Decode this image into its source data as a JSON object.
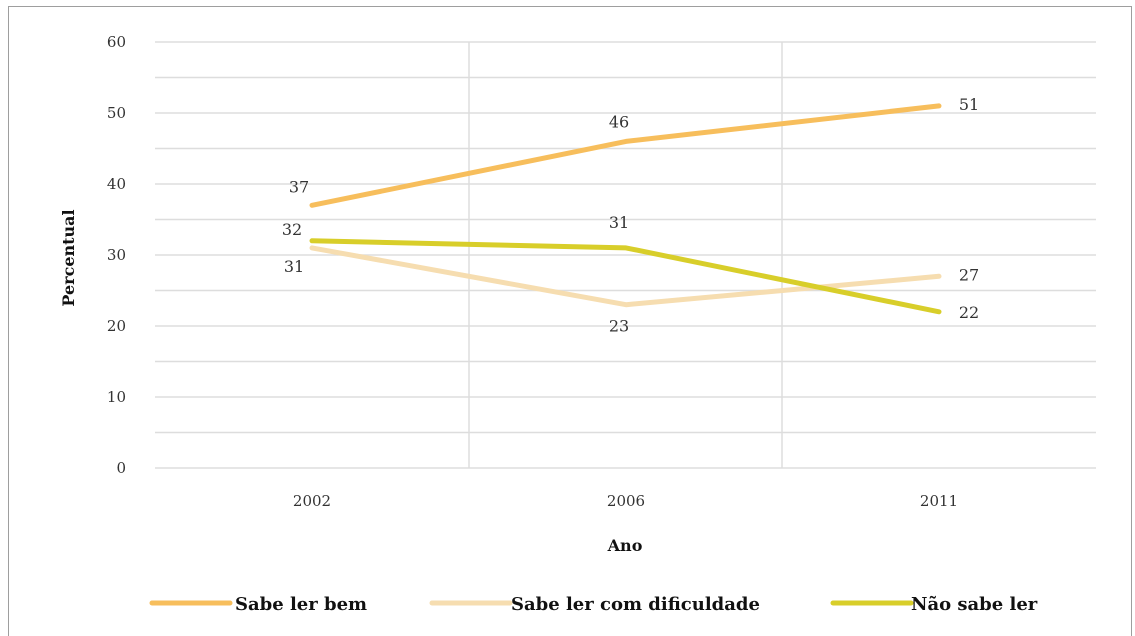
{
  "chart_data": {
    "type": "line",
    "title": "",
    "xlabel": "Ano",
    "ylabel": "Percentual",
    "ylim": [
      0,
      60
    ],
    "yticks": [
      0,
      10,
      20,
      30,
      40,
      50,
      60
    ],
    "categories": [
      "2002",
      "2006",
      "2011"
    ],
    "grid": "on",
    "legend_position": "bottom",
    "series": [
      {
        "name": "Sabe ler bem",
        "values": [
          37,
          46,
          51
        ],
        "color": "#f7be5c"
      },
      {
        "name": "Sabe ler com dificuldade",
        "values": [
          31,
          23,
          27
        ],
        "color": "#f6ddb0"
      },
      {
        "name": "Não sabe ler",
        "values": [
          32,
          31,
          22
        ],
        "color": "#d8ce2a"
      }
    ]
  }
}
